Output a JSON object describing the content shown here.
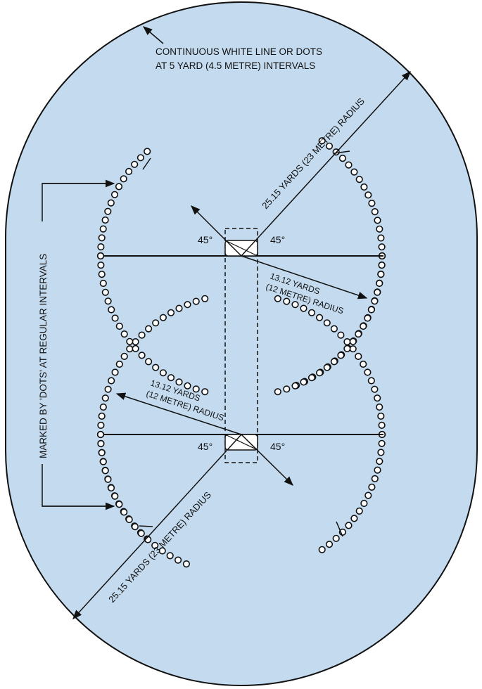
{
  "colors": {
    "field": "#c4dbef",
    "ink": "#111111",
    "dot_fill": "#ffffff",
    "pitch_fill": "#ffffff"
  },
  "labels": {
    "boundary_line1": "CONTINUOUS WHITE LINE OR DOTS",
    "boundary_line2": "AT 5 YARD (4.5 METRE) INTERVALS",
    "radius_large_top": "25.15 YARDS (23 METRE) RADIUS",
    "radius_large_bottom": "25.15 YARDS (23 METRE) RADIUS",
    "radius_small_top_line1": "13.12 YARDS",
    "radius_small_top_line2": "(12 METRE) RADIUS",
    "radius_small_bottom_line1": "13.12 YARDS",
    "radius_small_bottom_line2": "(12 METRE) RADIUS",
    "dots_marking": "MARKED BY 'DOTS' AT REGULAR INTERVALS",
    "angle_top_left": "45°",
    "angle_top_right": "45°",
    "angle_bottom_left": "45°",
    "angle_bottom_right": "45°"
  },
  "icons": [
    "arrow-head-icon",
    "dot-marker-icon"
  ]
}
